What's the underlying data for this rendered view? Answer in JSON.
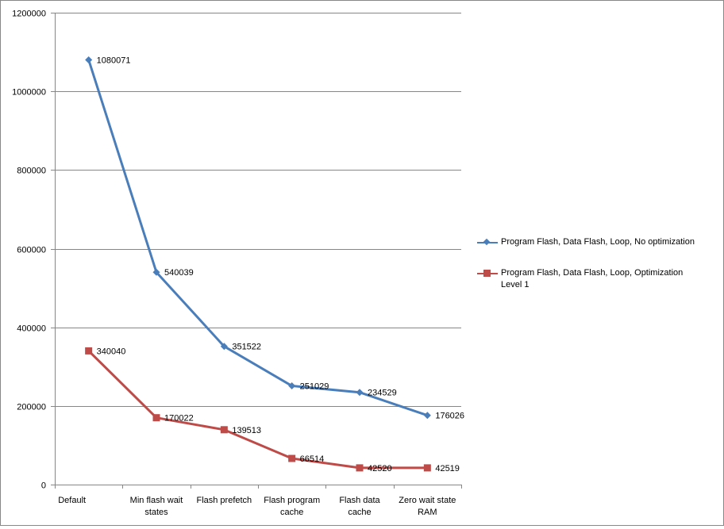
{
  "chart_data": {
    "type": "line",
    "title": "",
    "xlabel": "",
    "ylabel": "",
    "ylim": [
      0,
      1200000
    ],
    "yticks": [
      "0",
      "200000",
      "400000",
      "600000",
      "800000",
      "1000000",
      "1200000"
    ],
    "grid": true,
    "legend_position": "right",
    "categories": [
      "Default",
      "Min flash wait states",
      "Flash prefetch",
      "Flash program cache",
      "Flash data cache",
      "Zero wait state RAM"
    ],
    "category_lines": [
      [
        "Default"
      ],
      [
        "Min flash wait",
        "states"
      ],
      [
        "Flash prefetch"
      ],
      [
        "Flash program",
        "cache"
      ],
      [
        "Flash data",
        "cache"
      ],
      [
        "Zero wait state",
        "RAM"
      ]
    ],
    "series": [
      {
        "name": "Program Flash, Data Flash, Loop, No optimization",
        "name_lines": [
          "Program Flash, Data Flash, Loop, No optimization"
        ],
        "marker": "diamond",
        "color": "#4a7ebb",
        "values": [
          1080071,
          540039,
          351522,
          251029,
          234529,
          176026
        ]
      },
      {
        "name": "Program Flash, Data Flash, Loop, Optimization Level 1",
        "name_lines": [
          "Program Flash, Data Flash, Loop, Optimization",
          "Level 1"
        ],
        "marker": "square",
        "color": "#be4b48",
        "values": [
          340040,
          170022,
          139513,
          66514,
          42520,
          42519
        ]
      }
    ]
  }
}
